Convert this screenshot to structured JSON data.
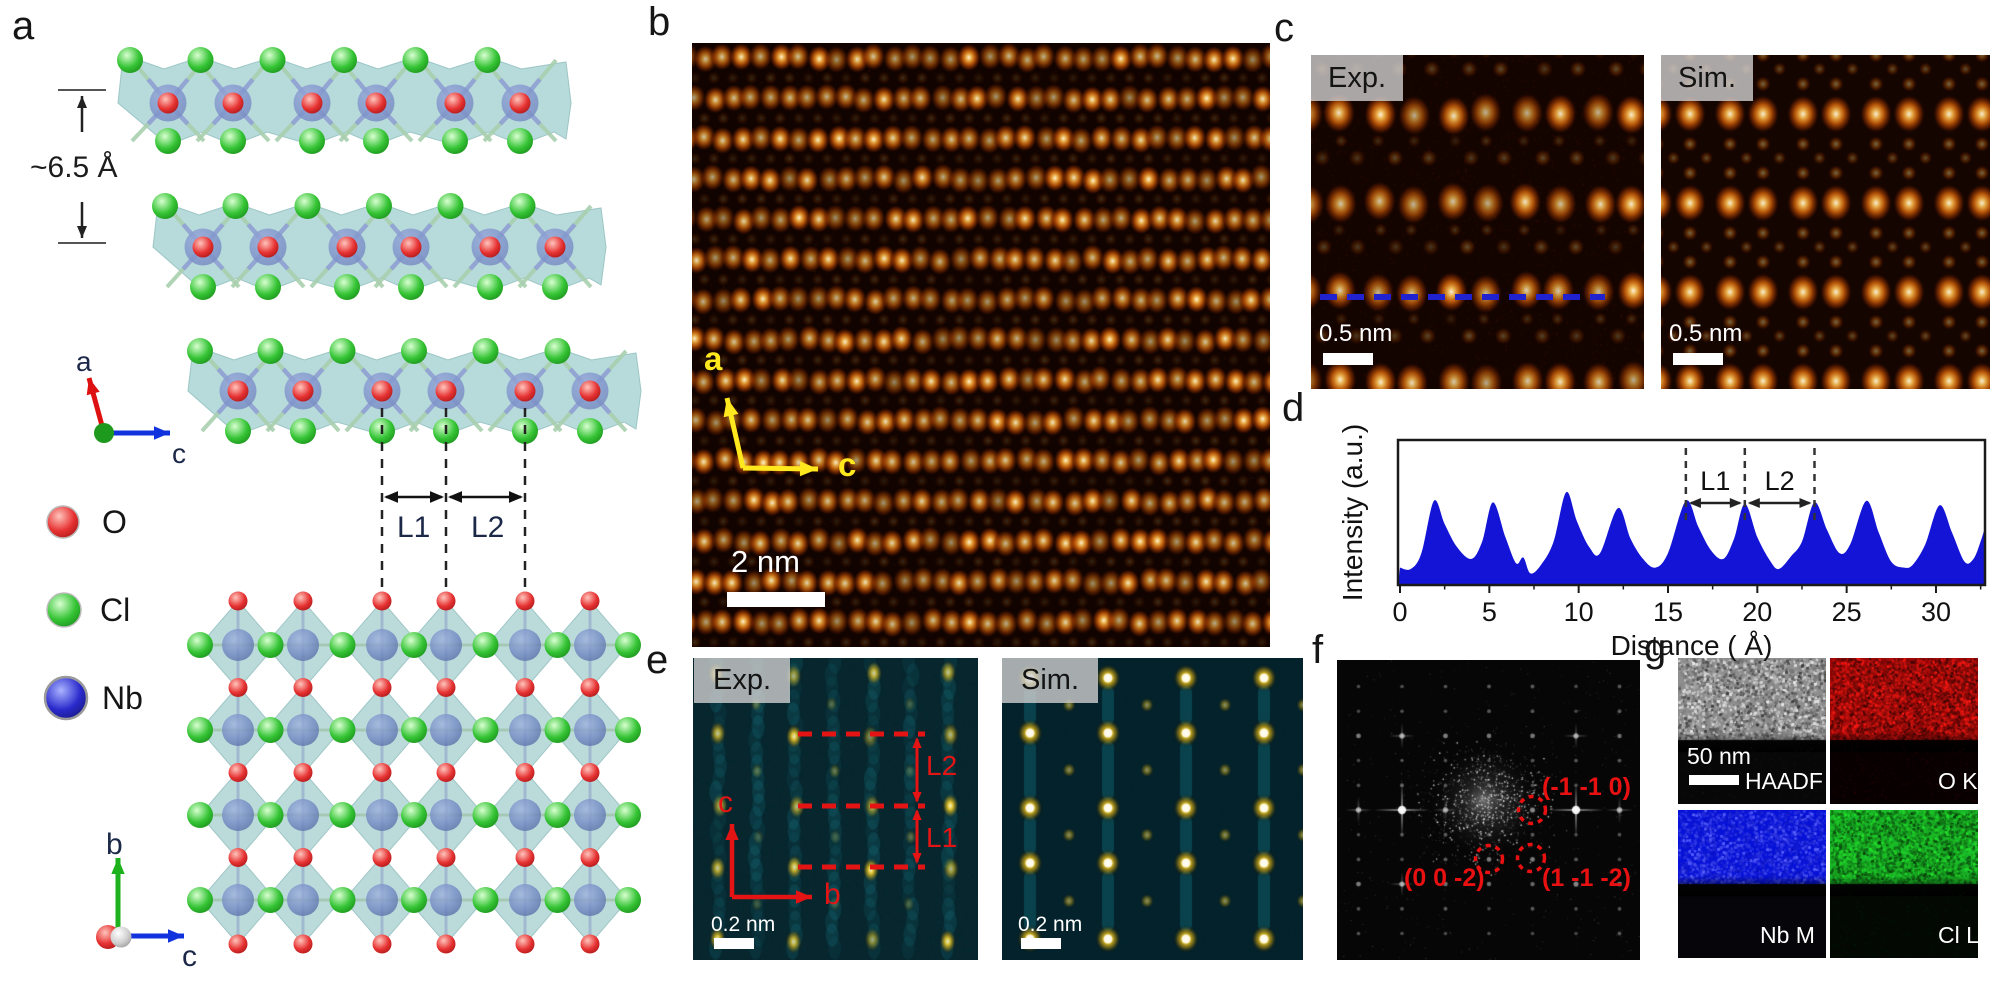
{
  "figure": {
    "panel_labels": {
      "a": "a",
      "b": "b",
      "c": "c",
      "d": "d",
      "e": "e",
      "f": "f",
      "g": "g"
    }
  },
  "panel_a": {
    "interlayer_spacing": "~6.5 Å",
    "axes_side": {
      "vertical": "a",
      "horizontal": "c"
    },
    "axes_plan": {
      "vertical": "b",
      "horizontal": "c"
    },
    "bond_lengths": {
      "l1": "L1",
      "l2": "L2"
    },
    "legend": [
      {
        "element": "O",
        "color": "#e63232"
      },
      {
        "element": "Cl",
        "color": "#35c435"
      },
      {
        "element": "Nb",
        "color": "#2a2acc"
      }
    ]
  },
  "panel_b": {
    "scale_bar": "2 nm",
    "axes": {
      "vertical": "a",
      "horizontal": "c"
    },
    "colors": {
      "background": "#100300",
      "dots": "#ff9b1e",
      "axis": "#ffe91e",
      "scalebar": "#ffffff"
    }
  },
  "panel_c": {
    "exp_tag": "Exp.",
    "sim_tag": "Sim.",
    "scale_bar_exp": "0.5 nm",
    "scale_bar_sim": "0.5 nm",
    "colors": {
      "background": "#140400",
      "dots": "#ff9b1e",
      "profile_line": "#2021cf"
    }
  },
  "panel_e": {
    "exp_tag": "Exp.",
    "sim_tag": "Sim.",
    "scale_bar_exp": "0.2 nm",
    "scale_bar_sim": "0.2 nm",
    "bond_lengths": {
      "l1": "L1",
      "l2": "L2"
    },
    "axes": {
      "vertical": "c",
      "horizontal": "b"
    },
    "colors": {
      "background": "#07262e",
      "spots": "#ffd21c",
      "annotation": "#e51414"
    }
  },
  "panel_f": {
    "reflections": [
      {
        "label": "(-1 -1 0)"
      },
      {
        "label": "(0 0 -2)"
      },
      {
        "label": "(1 -1 -2)"
      }
    ],
    "colors": {
      "background": "#060606",
      "spots": "#ffffff",
      "annotation": "#e81010"
    }
  },
  "panel_g": {
    "scale_bar": "50 nm",
    "maps": [
      {
        "label": "HAADF",
        "color": "#8e8e8e"
      },
      {
        "label": "O K",
        "color": "#cc1111"
      },
      {
        "label": "Nb M",
        "color": "#0712d8"
      },
      {
        "label": "Cl L",
        "color": "#17b92a"
      }
    ]
  },
  "chart_data": {
    "type": "area",
    "panel": "d",
    "title": "",
    "xlabel": "Distance ( Å)",
    "ylabel": "Intensity (a.u.)",
    "xlim": [
      0,
      32.8
    ],
    "xticks": [
      0,
      5,
      10,
      15,
      20,
      25,
      30
    ],
    "grid": false,
    "legend_position": "none",
    "fill_color": "#1414d6",
    "peak_positions_angstrom": [
      1.9,
      5.2,
      9.3,
      12.2,
      16.0,
      19.3,
      23.2,
      26.1,
      30.2
    ],
    "annotations": {
      "dashed_lines_x": [
        16.0,
        19.3,
        23.2
      ],
      "segments": [
        {
          "label": "L1",
          "from": 16.0,
          "to": 19.3
        },
        {
          "label": "L2",
          "from": 19.3,
          "to": 23.2
        }
      ]
    },
    "profile": {
      "x": [
        0,
        0.6,
        1.2,
        1.9,
        2.5,
        3.2,
        4.0,
        4.6,
        5.2,
        5.9,
        6.5,
        6.9,
        7.3,
        7.9,
        8.6,
        9.3,
        9.9,
        10.6,
        11.2,
        12.2,
        12.9,
        13.6,
        14.3,
        15.0,
        16.0,
        16.7,
        17.4,
        18.1,
        18.7,
        19.3,
        20.0,
        20.7,
        21.2,
        21.9,
        22.5,
        23.2,
        23.9,
        24.6,
        25.2,
        26.1,
        26.8,
        27.5,
        28.2,
        28.7,
        29.4,
        30.2,
        30.9,
        31.6,
        32.1,
        32.5,
        32.8
      ],
      "y": [
        0.12,
        0.11,
        0.22,
        0.58,
        0.42,
        0.26,
        0.18,
        0.3,
        0.57,
        0.33,
        0.15,
        0.19,
        0.08,
        0.14,
        0.3,
        0.64,
        0.44,
        0.26,
        0.22,
        0.53,
        0.32,
        0.18,
        0.12,
        0.22,
        0.58,
        0.4,
        0.24,
        0.18,
        0.32,
        0.56,
        0.33,
        0.17,
        0.11,
        0.2,
        0.3,
        0.57,
        0.38,
        0.22,
        0.28,
        0.58,
        0.36,
        0.16,
        0.12,
        0.14,
        0.28,
        0.55,
        0.36,
        0.16,
        0.18,
        0.3,
        0.42
      ]
    }
  }
}
